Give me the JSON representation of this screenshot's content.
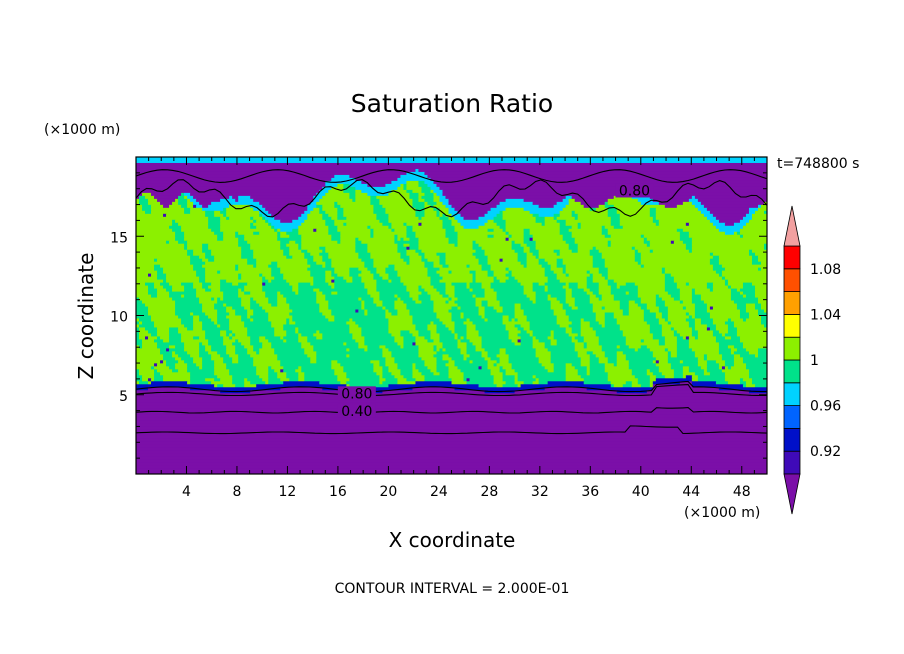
{
  "chart_data": {
    "type": "heatmap",
    "title": "Saturation Ratio",
    "xlabel": "X coordinate",
    "ylabel": "Z coordinate",
    "x_unit": "(×1000 m)",
    "y_unit": "(×1000 m)",
    "time_label": "t=748800 s",
    "footer": "CONTOUR INTERVAL = 2.000E-01",
    "xlim": [
      0,
      50
    ],
    "ylim": [
      0,
      20
    ],
    "x_ticks": [
      4,
      8,
      12,
      16,
      20,
      24,
      28,
      32,
      36,
      40,
      44,
      48
    ],
    "y_ticks": [
      5,
      10,
      15
    ],
    "contour_labels": [
      {
        "text": "0.80",
        "x": 17.5,
        "y": 4.9
      },
      {
        "text": "0.40",
        "x": 17.5,
        "y": 3.8
      },
      {
        "text": "0.80",
        "x": 39.5,
        "y": 17.7
      }
    ],
    "colorbar": {
      "levels": [
        {
          "lo": null,
          "hi": 0.9,
          "color": "#7b0fa8"
        },
        {
          "lo": 0.9,
          "hi": 0.92,
          "color": "#3f0ab8"
        },
        {
          "lo": 0.92,
          "hi": 0.94,
          "color": "#0010c8"
        },
        {
          "lo": 0.94,
          "hi": 0.96,
          "color": "#0064ff"
        },
        {
          "lo": 0.96,
          "hi": 0.98,
          "color": "#00d2ff"
        },
        {
          "lo": 0.98,
          "hi": 1.0,
          "color": "#00e28a"
        },
        {
          "lo": 1.0,
          "hi": 1.02,
          "color": "#8cf000"
        },
        {
          "lo": 1.02,
          "hi": 1.04,
          "color": "#ffff00"
        },
        {
          "lo": 1.04,
          "hi": 1.06,
          "color": "#ffa000"
        },
        {
          "lo": 1.06,
          "hi": 1.08,
          "color": "#ff5000"
        },
        {
          "lo": 1.08,
          "hi": 1.1,
          "color": "#ff0000"
        },
        {
          "lo": 1.1,
          "hi": null,
          "color": "#f2a0a0"
        }
      ],
      "tick_labels": [
        "0.92",
        "0.96",
        "1",
        "1.04",
        "1.08"
      ],
      "tick_values": [
        0.92,
        0.96,
        1.0,
        1.04,
        1.08
      ]
    },
    "regions": {
      "lower_dry_layer": {
        "z_top": 5.3,
        "value": 0.4,
        "color": "#7b0fa8"
      },
      "mid_layer": {
        "z_bottom": 5.3,
        "z_top": 15.5,
        "value": 1.0
      },
      "upper_dry_layer": {
        "z_bottom": 16.5,
        "value": 0.8
      }
    }
  }
}
